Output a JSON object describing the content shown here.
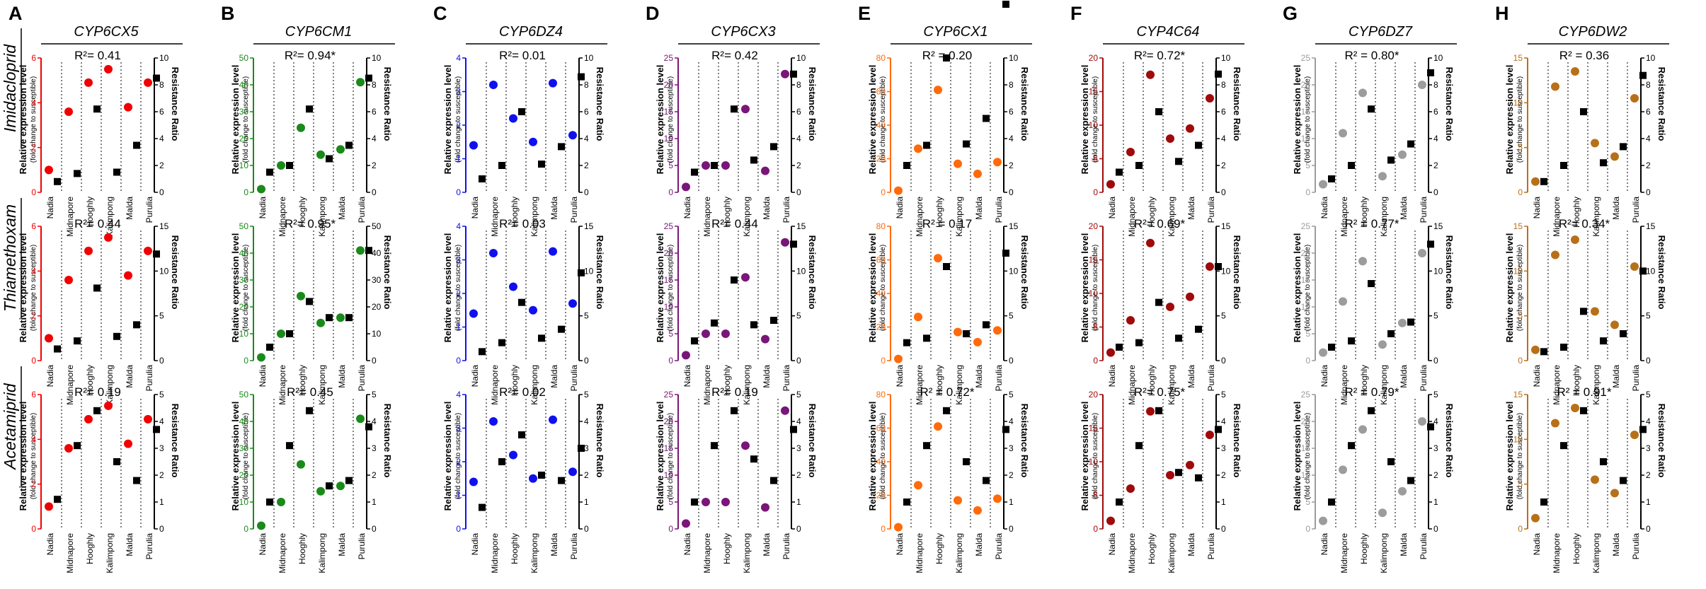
{
  "figure": {
    "panel_letters": [
      "A",
      "B",
      "C",
      "D",
      "E",
      "F",
      "G",
      "H"
    ],
    "row_labels": [
      "Imidacloprid",
      "Thiamethoxam",
      "Acetamiprid"
    ],
    "left_axis_label": "Relative expression level",
    "left_axis_sublabel": "(fold change to susceptible)",
    "right_axis_label": "Resistance Ratio",
    "districts": [
      "Nadia",
      "Midnapore",
      "Hooghly",
      "Kalimpong",
      "Malda",
      "Purulia"
    ]
  },
  "chart_data": [
    {
      "type": "scatter",
      "gene": "CYP6CX5",
      "color": "#f00000",
      "left_ticks": [
        "0",
        "2",
        "4",
        "6"
      ],
      "ylim": [
        0,
        6
      ],
      "r2": [
        "R²= 0.41",
        "R²= 0.44",
        "R²= 0.19"
      ],
      "right_ticks": [
        [
          "0",
          "2",
          "4",
          "6",
          "8",
          "10"
        ],
        [
          "0",
          "5",
          "10",
          "15"
        ],
        [
          "0",
          "1",
          "2",
          "3",
          "4",
          "5"
        ]
      ],
      "rlim": [
        10,
        15,
        5
      ],
      "expression": [
        1.0,
        3.6,
        4.9,
        5.5,
        3.8,
        4.9
      ],
      "resistance": [
        [
          0.8,
          1.4,
          6.2,
          1.5,
          3.5,
          8.5
        ],
        [
          1.3,
          2.2,
          8.1,
          2.7,
          4.0,
          11.9
        ],
        [
          1.1,
          3.1,
          4.4,
          2.5,
          1.8,
          3.7
        ]
      ]
    },
    {
      "type": "scatter",
      "gene": "CYP6CM1",
      "color": "#1a8a1a",
      "left_ticks": [
        "0",
        "10",
        "20",
        "30",
        "40",
        "50"
      ],
      "ylim": [
        0,
        50
      ],
      "r2": [
        "R²= 0.94*",
        "R²= 0.95*",
        "R²= 0.45"
      ],
      "right_ticks": [
        [
          "0",
          "2",
          "4",
          "6",
          "8",
          "10"
        ],
        [
          "0",
          "10",
          "20",
          "30",
          "40",
          "50"
        ],
        [
          "0",
          "1",
          "2",
          "3",
          "4",
          "5"
        ]
      ],
      "rlim": [
        10,
        50,
        5
      ],
      "expression": [
        1.2,
        10.0,
        24.0,
        14.0,
        16.0,
        41.0
      ],
      "resistance": [
        [
          1.5,
          2.0,
          6.2,
          2.5,
          3.5,
          8.5
        ],
        [
          5.0,
          10.0,
          22.0,
          16.0,
          16.0,
          41.0
        ],
        [
          1.0,
          3.1,
          4.4,
          1.6,
          1.8,
          3.8
        ]
      ]
    },
    {
      "type": "scatter",
      "gene": "CYP6DZ4",
      "color": "#1010ee",
      "left_ticks": [
        "0",
        "1",
        "2",
        "3",
        "4"
      ],
      "ylim": [
        0,
        4
      ],
      "r2": [
        "R²= 0.01",
        "R²= 0.03",
        "R²= 0.02"
      ],
      "right_ticks": [
        [
          "0",
          "2",
          "4",
          "6",
          "8",
          "10"
        ],
        [
          "0",
          "5",
          "10",
          "15"
        ],
        [
          "0",
          "1",
          "2",
          "3",
          "4",
          "5"
        ]
      ],
      "rlim": [
        10,
        15,
        5
      ],
      "expression": [
        1.4,
        3.2,
        2.2,
        1.5,
        3.25,
        1.7
      ],
      "resistance": [
        [
          1.0,
          2.0,
          6.0,
          2.1,
          3.4,
          8.6
        ],
        [
          1.0,
          2.0,
          6.5,
          2.5,
          3.5,
          9.8
        ],
        [
          0.8,
          2.5,
          3.5,
          2.0,
          1.8,
          3.0
        ]
      ]
    },
    {
      "type": "scatter",
      "gene": "CYP6CX3",
      "color": "#7a157a",
      "left_ticks": [
        "0",
        "5",
        "10",
        "15",
        "20",
        "25"
      ],
      "ylim": [
        0,
        25
      ],
      "r2": [
        "R²= 0.42",
        "R²= 0.44",
        "R²= 0.19"
      ],
      "right_ticks": [
        [
          "0",
          "2",
          "4",
          "6",
          "8",
          "10"
        ],
        [
          "0",
          "5",
          "10",
          "15"
        ],
        [
          "0",
          "1",
          "2",
          "3",
          "4",
          "5"
        ]
      ],
      "rlim": [
        10,
        15,
        5
      ],
      "expression": [
        1.0,
        5.0,
        5.0,
        15.5,
        4.0,
        22.0
      ],
      "resistance": [
        [
          1.5,
          2.0,
          6.2,
          2.4,
          3.4,
          8.8
        ],
        [
          2.2,
          4.2,
          9.0,
          4.0,
          4.5,
          13.0
        ],
        [
          1.0,
          3.1,
          4.4,
          2.6,
          1.8,
          3.7
        ]
      ]
    },
    {
      "type": "scatter",
      "gene": "CYP6CX1",
      "color": "#ff6a0a",
      "left_ticks": [
        "0",
        "20",
        "40",
        "60",
        "80"
      ],
      "ylim": [
        0,
        80
      ],
      "r2": [
        "R² = 0.20",
        "R² = 0.17",
        "R² = 0.72*"
      ],
      "right_ticks": [
        [
          "0",
          "2",
          "4",
          "6",
          "8",
          "10"
        ],
        [
          "0",
          "5",
          "10",
          "15"
        ],
        [
          "0",
          "1",
          "2",
          "3",
          "4",
          "5"
        ]
      ],
      "rlim": [
        10,
        15,
        5
      ],
      "expression": [
        1.0,
        26.0,
        61.0,
        17.0,
        11.0,
        18.0
      ],
      "resistance": [
        [
          2.0,
          3.5,
          10.0,
          3.6,
          5.5,
          14.0
        ],
        [
          2.0,
          2.5,
          10.5,
          3.0,
          4.0,
          12.0
        ],
        [
          1.0,
          3.1,
          4.4,
          2.5,
          1.8,
          3.7
        ]
      ]
    },
    {
      "type": "scatter",
      "gene": "CYP4C64",
      "color": "#a00a0a",
      "left_ticks": [
        "0",
        "5",
        "10",
        "15",
        "20"
      ],
      "ylim": [
        0,
        20
      ],
      "r2": [
        "R²= 0.72*",
        "R²= 0.69*",
        "R²= 0.75*"
      ],
      "right_ticks": [
        [
          "0",
          "2",
          "4",
          "6",
          "8",
          "10"
        ],
        [
          "0",
          "5",
          "10",
          "15"
        ],
        [
          "0",
          "1",
          "2",
          "3",
          "4",
          "5"
        ]
      ],
      "rlim": [
        10,
        15,
        5
      ],
      "expression": [
        1.2,
        6.0,
        17.5,
        8.0,
        9.5,
        14.0
      ],
      "resistance": [
        [
          1.5,
          2.0,
          6.0,
          2.3,
          3.5,
          8.8
        ],
        [
          1.5,
          2.0,
          6.5,
          2.5,
          3.5,
          10.5
        ],
        [
          1.0,
          3.1,
          4.4,
          2.1,
          1.9,
          3.7
        ]
      ]
    },
    {
      "type": "scatter",
      "gene": "CYP6DZ7",
      "color": "#9c9c9c",
      "left_ticks": [
        "0",
        "5",
        "10",
        "15",
        "20",
        "25"
      ],
      "ylim": [
        0,
        25
      ],
      "r2": [
        "R² = 0.80*",
        "R² = 0.77*",
        "R² = 0.79*"
      ],
      "right_ticks": [
        [
          "0",
          "2",
          "4",
          "6",
          "8",
          "10"
        ],
        [
          "0",
          "5",
          "10",
          "15"
        ],
        [
          "0",
          "1",
          "2",
          "3",
          "4",
          "5"
        ]
      ],
      "rlim": [
        10,
        15,
        5
      ],
      "expression": [
        1.5,
        11.0,
        18.5,
        3.0,
        7.0,
        20.0
      ],
      "resistance": [
        [
          1.0,
          2.0,
          6.2,
          2.4,
          3.6,
          8.9
        ],
        [
          1.5,
          2.2,
          8.6,
          3.0,
          4.3,
          13.0
        ],
        [
          1.0,
          3.1,
          4.4,
          2.5,
          1.8,
          3.8
        ]
      ]
    },
    {
      "type": "scatter",
      "gene": "CYP6DW2",
      "color": "#b87018",
      "left_ticks": [
        "0",
        "5",
        "10",
        "15"
      ],
      "ylim": [
        0,
        15
      ],
      "r2": [
        "R² = 0.36",
        "R²= 0.34*",
        "R² = 0.91*"
      ],
      "right_ticks": [
        [
          "0",
          "2",
          "4",
          "6",
          "8",
          "10"
        ],
        [
          "0",
          "5",
          "10",
          "15"
        ],
        [
          "0",
          "1",
          "2",
          "3",
          "4",
          "5"
        ]
      ],
      "rlim": [
        10,
        15,
        5
      ],
      "expression": [
        1.2,
        11.8,
        13.5,
        5.5,
        4.0,
        10.5
      ],
      "resistance": [
        [
          0.8,
          2.0,
          6.0,
          2.2,
          3.4,
          8.7
        ],
        [
          1.0,
          1.5,
          5.5,
          2.2,
          3.0,
          10.0
        ],
        [
          1.0,
          3.1,
          4.4,
          2.5,
          1.8,
          3.7
        ]
      ]
    }
  ]
}
